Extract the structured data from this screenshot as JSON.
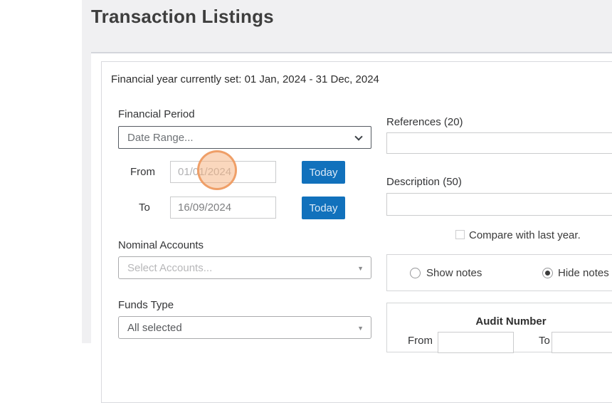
{
  "page": {
    "title": "Transaction Listings",
    "financial_year_note": "Financial year currently set: 01 Jan, 2024 - 31 Dec, 2024"
  },
  "colors": {
    "accent_blue": "#1171bc",
    "page_background": "#f0f0f2",
    "click_indicator_orange": "#ee9a5f"
  },
  "filters": {
    "financial_period": {
      "label": "Financial Period",
      "selected": "Date Range..."
    },
    "date_from": {
      "label": "From",
      "value": "01/01/2024",
      "button_label": "Today"
    },
    "date_to": {
      "label": "To",
      "value": "16/09/2024",
      "button_label": "Today"
    },
    "nominal_accounts": {
      "label": "Nominal Accounts",
      "placeholder": "Select Accounts..."
    },
    "funds_type": {
      "label": "Funds Type",
      "selected": "All selected"
    }
  },
  "right": {
    "references": {
      "label": "References (20)",
      "value": ""
    },
    "description": {
      "label": "Description (50)",
      "value": ""
    },
    "compare": {
      "label": "Compare with last year.",
      "checked": false
    },
    "notes": {
      "show_label": "Show notes",
      "hide_label": "Hide notes",
      "selected": "hide"
    },
    "audit": {
      "title": "Audit Number",
      "from_label": "From",
      "to_label": "To"
    }
  }
}
